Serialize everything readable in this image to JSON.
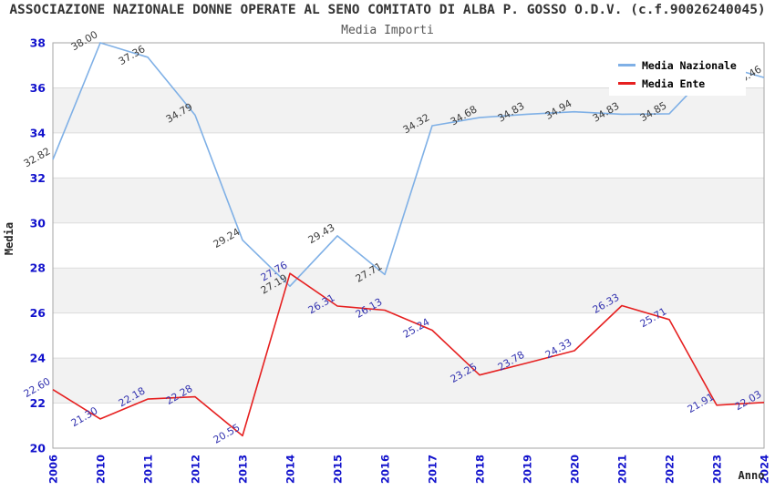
{
  "title": "ASSOCIAZIONE NAZIONALE DONNE OPERATE AL SENO COMITATO DI ALBA P. GOSSO O.D.V. (c.f.90026240045)",
  "subtitle": "Media Importi",
  "legend": {
    "position": "top-right",
    "entries": [
      {
        "label": "Media Nazionale",
        "color": "#7fb0e6"
      },
      {
        "label": "Media Ente",
        "color": "#e62020"
      }
    ]
  },
  "axes": {
    "x_label": "Anno",
    "y_label": "Media",
    "x_tick_color": "#1111cc",
    "y_tick_color": "#1111cc",
    "y_ticks": [
      20,
      22,
      24,
      26,
      28,
      30,
      32,
      34,
      36,
      38
    ]
  },
  "chart_data": {
    "type": "line",
    "title": "Media Importi",
    "xlabel": "Anno",
    "ylabel": "Media",
    "ylim": [
      20,
      38
    ],
    "grid": "horizontal-bands-alternating",
    "legend_position": "top-right",
    "categories": [
      "2006",
      "2010",
      "2011",
      "2012",
      "2013",
      "2014",
      "2015",
      "2016",
      "2017",
      "2018",
      "2019",
      "2020",
      "2021",
      "2022",
      "2023",
      "2024"
    ],
    "series": [
      {
        "name": "Media Nazionale",
        "color": "#7fb0e6",
        "label_color": "#3c3c3c",
        "values": [
          32.82,
          38.0,
          37.36,
          34.79,
          29.24,
          27.19,
          29.43,
          27.71,
          34.32,
          34.68,
          34.83,
          34.94,
          34.83,
          34.85,
          37.05,
          36.46
        ]
      },
      {
        "name": "Media Ente",
        "color": "#e62020",
        "label_color": "#3434b0",
        "values": [
          22.6,
          21.3,
          22.18,
          22.28,
          20.55,
          27.76,
          26.31,
          26.13,
          25.24,
          23.25,
          23.78,
          24.33,
          26.33,
          25.71,
          21.91,
          22.03
        ]
      }
    ]
  },
  "colors": {
    "band_gray": "#f2f2f2",
    "band_white": "#ffffff",
    "gridline": "#dcdcdc",
    "plot_border": "#a6a6a6",
    "title_text": "#333333",
    "subtitle_text": "#555555",
    "axis_label_text": "#222222",
    "legend_text": "#000000",
    "legend_bg": "#ffffff"
  }
}
